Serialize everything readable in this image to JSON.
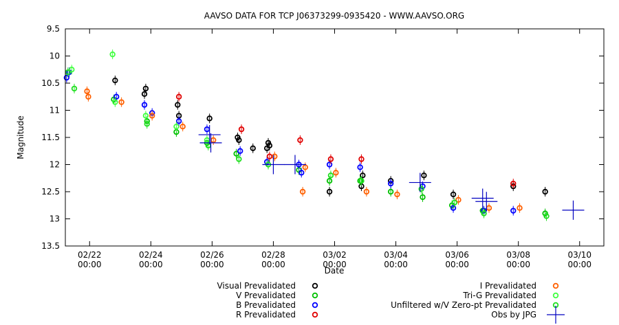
{
  "chart_data": {
    "type": "scatter",
    "title": "AAVSO DATA FOR TCP J06373299-0935420 - WWW.AAVSO.ORG",
    "xlabel": "Date",
    "ylabel": "Magnitude",
    "x_range": [
      "2019-02-21 05:00",
      "2019-03-10 19:00"
    ],
    "ylim": [
      13.5,
      9.5
    ],
    "y_inverted": true,
    "grid": false,
    "legend_position": "bottom",
    "x_ticks": [
      {
        "date": "2019-02-22",
        "line1": "02/22",
        "line2": "00:00"
      },
      {
        "date": "2019-02-24",
        "line1": "02/24",
        "line2": "00:00"
      },
      {
        "date": "2019-02-26",
        "line1": "02/26",
        "line2": "00:00"
      },
      {
        "date": "2019-02-28",
        "line1": "02/28",
        "line2": "00:00"
      },
      {
        "date": "2019-03-02",
        "line1": "03/02",
        "line2": "00:00"
      },
      {
        "date": "2019-03-04",
        "line1": "03/04",
        "line2": "00:00"
      },
      {
        "date": "2019-03-06",
        "line1": "03/06",
        "line2": "00:00"
      },
      {
        "date": "2019-03-08",
        "line1": "03/08",
        "line2": "00:00"
      },
      {
        "date": "2019-03-10",
        "line1": "03/10",
        "line2": "00:00"
      }
    ],
    "y_ticks": [
      "9.5",
      "10",
      "10.5",
      "11",
      "11.5",
      "12",
      "12.5",
      "13",
      "13.5"
    ],
    "series": [
      {
        "name": "Visual Prevalidated",
        "color": "#000000",
        "marker": "circle",
        "points": [
          [
            "2019-02-22 20:00",
            10.45
          ],
          [
            "2019-02-23 20:00",
            10.6
          ],
          [
            "2019-02-23 19:00",
            10.7
          ],
          [
            "2019-02-24 21:00",
            10.9
          ],
          [
            "2019-02-24 22:00",
            11.1
          ],
          [
            "2019-02-25 22:00",
            11.15
          ],
          [
            "2019-02-26 20:00",
            11.5
          ],
          [
            "2019-02-26 21:00",
            11.55
          ],
          [
            "2019-02-27 08:00",
            11.7
          ],
          [
            "2019-02-27 20:00",
            11.6
          ],
          [
            "2019-02-27 21:00",
            11.65
          ],
          [
            "2019-02-27 19:00",
            11.7
          ],
          [
            "2019-03-01 20:00",
            12.5
          ],
          [
            "2019-03-02 21:00",
            12.4
          ],
          [
            "2019-03-02 22:00",
            12.2
          ],
          [
            "2019-03-03 20:00",
            12.3
          ],
          [
            "2019-03-04 22:00",
            12.2
          ],
          [
            "2019-03-05 21:00",
            12.55
          ],
          [
            "2019-03-07 20:00",
            12.4
          ],
          [
            "2019-03-08 21:00",
            12.5
          ]
        ]
      },
      {
        "name": "V Prevalidated",
        "color": "#00c000",
        "marker": "circle",
        "points": [
          [
            "2019-02-22 19:00",
            10.8
          ],
          [
            "2019-02-23 21:00",
            11.2
          ],
          [
            "2019-02-24 20:00",
            11.4
          ],
          [
            "2019-02-25 20:00",
            11.6
          ],
          [
            "2019-02-26 19:00",
            11.8
          ],
          [
            "2019-02-28 20:00",
            12.1
          ],
          [
            "2019-03-01 20:00",
            12.3
          ],
          [
            "2019-03-02 20:00",
            12.3
          ],
          [
            "2019-03-03 20:00",
            12.5
          ],
          [
            "2019-03-04 21:00",
            12.6
          ],
          [
            "2019-03-05 20:00",
            12.75
          ],
          [
            "2019-03-06 20:00",
            12.85
          ],
          [
            "2019-03-08 21:00",
            12.9
          ]
        ]
      },
      {
        "name": "B Prevalidated",
        "color": "#0000ff",
        "marker": "circle",
        "points": [
          [
            "2019-02-21 06:00",
            10.4
          ],
          [
            "2019-02-21 08:00",
            10.3
          ],
          [
            "2019-02-22 21:00",
            10.75
          ],
          [
            "2019-02-23 19:00",
            10.9
          ],
          [
            "2019-02-24 01:00",
            11.05
          ],
          [
            "2019-02-24 22:00",
            11.2
          ],
          [
            "2019-02-25 20:00",
            11.35
          ],
          [
            "2019-02-26 22:00",
            11.75
          ],
          [
            "2019-02-27 19:00",
            11.95
          ],
          [
            "2019-02-28 20:00",
            12.0
          ],
          [
            "2019-02-28 22:00",
            12.15
          ],
          [
            "2019-03-01 20:00",
            12.0
          ],
          [
            "2019-03-02 20:00",
            12.05
          ],
          [
            "2019-03-03 20:00",
            12.35
          ],
          [
            "2019-03-04 21:00",
            12.4
          ],
          [
            "2019-03-05 21:00",
            12.8
          ],
          [
            "2019-03-06 21:00",
            12.85
          ],
          [
            "2019-03-07 20:00",
            12.85
          ]
        ]
      },
      {
        "name": "R Prevalidated",
        "color": "#e00000",
        "marker": "circle",
        "points": [
          [
            "2019-02-24 22:00",
            10.75
          ],
          [
            "2019-02-26 23:00",
            11.35
          ],
          [
            "2019-02-27 21:00",
            11.85
          ],
          [
            "2019-02-28 21:00",
            11.55
          ],
          [
            "2019-03-01 21:00",
            11.9
          ],
          [
            "2019-03-02 21:00",
            11.9
          ],
          [
            "2019-03-07 20:00",
            12.35
          ]
        ]
      },
      {
        "name": "I Prevalidated",
        "color": "#ff6000",
        "marker": "circle",
        "points": [
          [
            "2019-02-21 22:00",
            10.65
          ],
          [
            "2019-02-21 23:00",
            10.75
          ],
          [
            "2019-02-23 01:00",
            10.85
          ],
          [
            "2019-02-24 01:00",
            11.1
          ],
          [
            "2019-02-25 01:00",
            11.3
          ],
          [
            "2019-02-26 01:00",
            11.55
          ],
          [
            "2019-02-28 01:00",
            11.85
          ],
          [
            "2019-02-28 23:00",
            12.5
          ],
          [
            "2019-03-01 01:00",
            12.05
          ],
          [
            "2019-03-02 01:00",
            12.15
          ],
          [
            "2019-03-03 01:00",
            12.5
          ],
          [
            "2019-03-04 01:00",
            12.55
          ],
          [
            "2019-03-06 01:00",
            12.65
          ],
          [
            "2019-03-07 01:00",
            12.8
          ],
          [
            "2019-03-08 01:00",
            12.8
          ]
        ]
      },
      {
        "name": "Tri-G Prevalidated",
        "color": "#40ff40",
        "marker": "circle",
        "points": [
          [
            "2019-02-22 18:00",
            9.97
          ],
          [
            "2019-02-21 10:00",
            10.25
          ],
          [
            "2019-02-22 20:00",
            10.85
          ],
          [
            "2019-02-23 20:00",
            11.1
          ],
          [
            "2019-02-24 20:00",
            11.3
          ],
          [
            "2019-02-25 20:00",
            11.55
          ]
        ]
      },
      {
        "name": "Unfiltered w/V Zero-pt Prevalidated",
        "color": "#20e020",
        "marker": "circle",
        "points": [
          [
            "2019-02-21 07:00",
            10.3
          ],
          [
            "2019-02-21 12:00",
            10.6
          ],
          [
            "2019-02-23 21:00",
            11.25
          ],
          [
            "2019-02-25 21:00",
            11.65
          ],
          [
            "2019-02-26 21:00",
            11.9
          ],
          [
            "2019-02-27 20:00",
            12.0
          ],
          [
            "2019-03-01 21:00",
            12.2
          ],
          [
            "2019-03-02 21:00",
            12.3
          ],
          [
            "2019-03-04 20:00",
            12.45
          ],
          [
            "2019-03-05 22:00",
            12.7
          ],
          [
            "2019-03-06 21:00",
            12.9
          ],
          [
            "2019-03-08 22:00",
            12.95
          ]
        ]
      },
      {
        "name": "Obs by JPG",
        "color": "#0000c0",
        "marker": "cross",
        "points": [
          [
            "2019-02-25 22:00",
            11.45
          ],
          [
            "2019-02-25 23:00",
            11.6
          ],
          [
            "2019-02-28 00:00",
            12.0
          ],
          [
            "2019-02-28 17:00",
            12.0
          ],
          [
            "2019-03-04 19:00",
            12.33
          ],
          [
            "2019-03-06 20:00",
            12.62
          ],
          [
            "2019-03-06 23:00",
            12.68
          ],
          [
            "2019-03-09 19:00",
            12.84
          ]
        ]
      }
    ]
  }
}
